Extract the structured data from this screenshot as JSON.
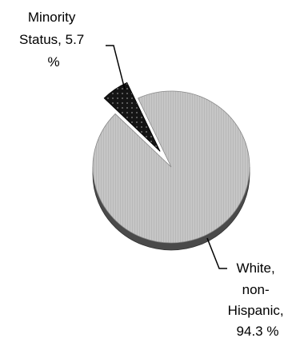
{
  "chart_data": {
    "type": "pie",
    "style": "3d-tilted",
    "categories": [
      "White, non-Hispanic",
      "Minority Status"
    ],
    "values": [
      94.3,
      5.7
    ],
    "unit": "%",
    "slices": [
      {
        "name": "White, non-Hispanic",
        "value": 94.3,
        "color": "#c2c2c2",
        "exploded": false
      },
      {
        "name": "Minority Status",
        "value": 5.7,
        "color": "#1a1a1a",
        "exploded": true
      }
    ],
    "labels": {
      "minority": [
        "Minority",
        "Status, 5.7",
        "%"
      ],
      "white": [
        "White,",
        "non-",
        "Hispanic,",
        "94.3 %"
      ]
    },
    "title": "",
    "legend": "none"
  }
}
